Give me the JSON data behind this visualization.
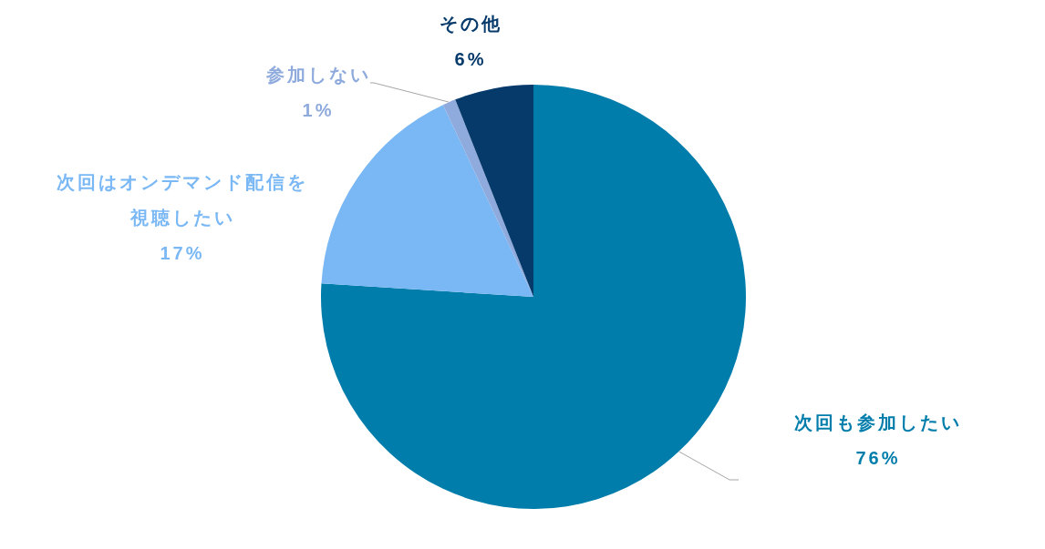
{
  "chart_data": {
    "type": "pie",
    "categories": [
      "次回も参加したい",
      "次回はオンデマンド配信を視聴したい",
      "参加しない",
      "その他"
    ],
    "values": [
      76,
      17,
      1,
      6
    ],
    "colors": [
      "#007dab",
      "#7ab8f5",
      "#8faadc",
      "#063a6b"
    ],
    "value_labels": [
      "76%",
      "17%",
      "1%",
      "6%"
    ],
    "legend": false
  }
}
